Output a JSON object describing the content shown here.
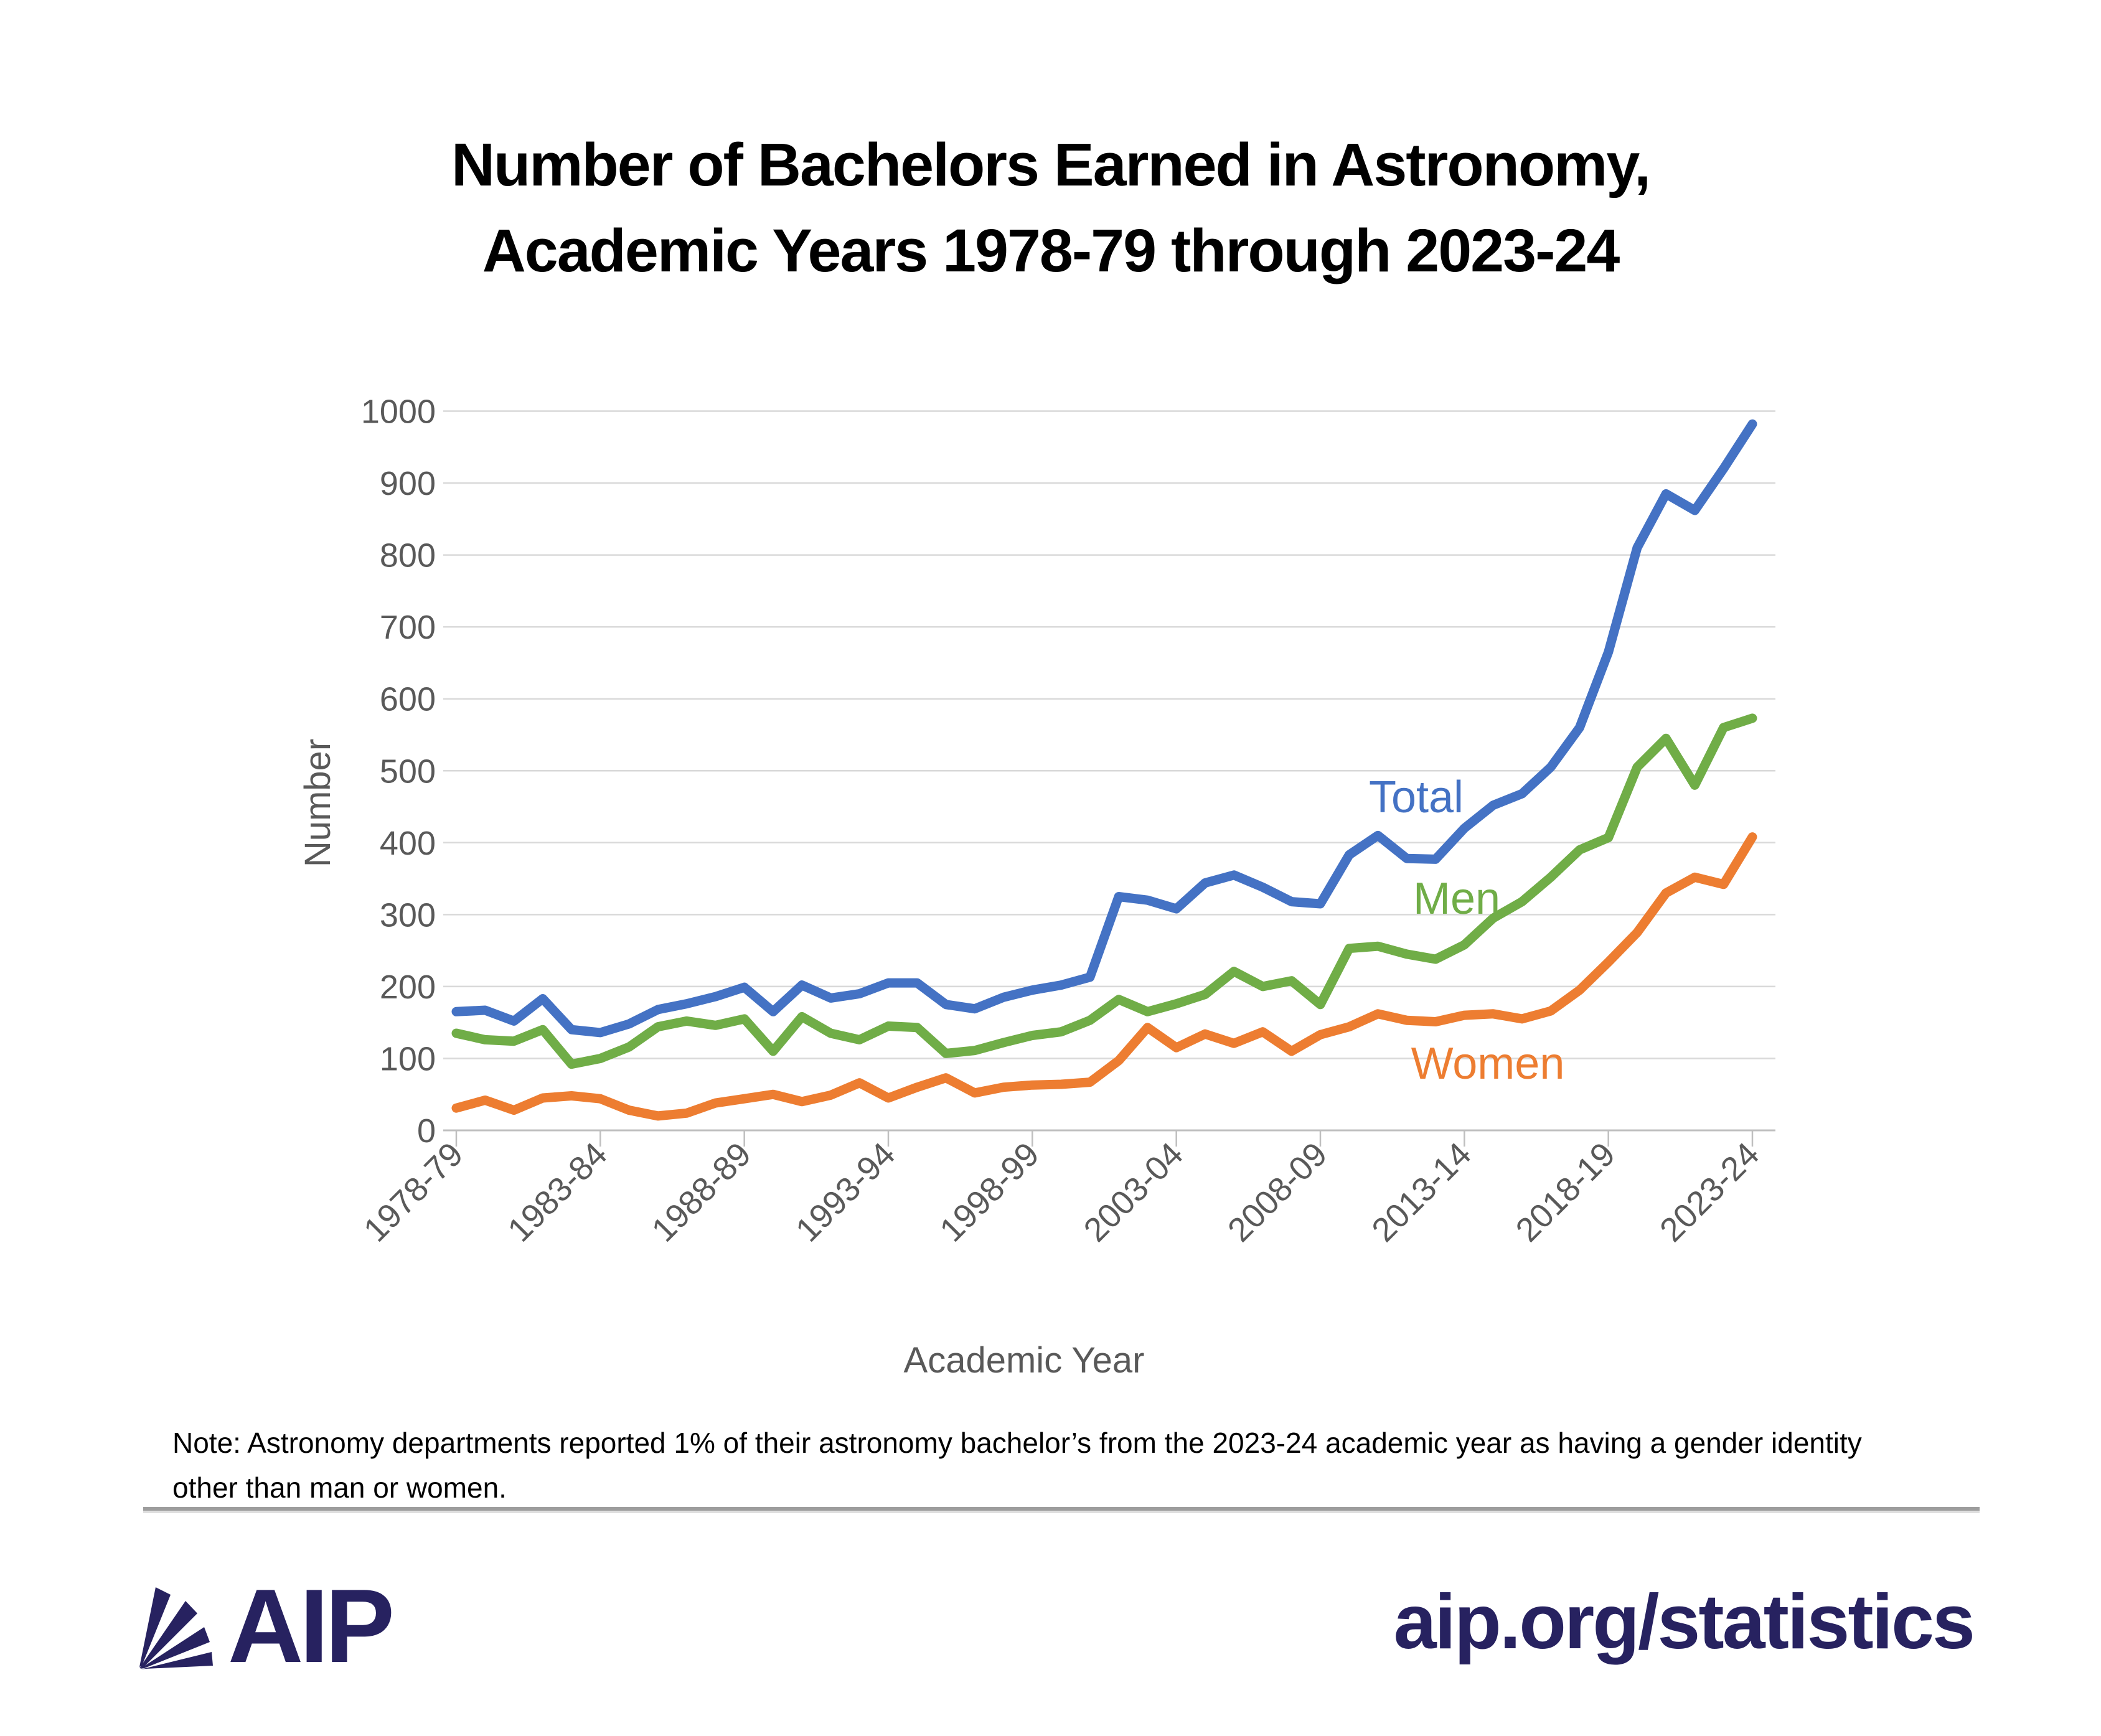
{
  "title": {
    "line1": "Number of Bachelors Earned in Astronomy,",
    "line2": "Academic Years 1978-79 through 2023-24"
  },
  "chart_data": {
    "type": "line",
    "title": "Number of Bachelors Earned in Astronomy, Academic Years 1978-79 through 2023-24",
    "xlabel": "Academic Year",
    "ylabel": "Number",
    "ylim": [
      0,
      1000
    ],
    "y_ticks": [
      0,
      100,
      200,
      300,
      400,
      500,
      600,
      700,
      800,
      900,
      1000
    ],
    "grid": true,
    "legend_position": "inline-right",
    "x_tick_labels": [
      "1978-79",
      "1983-84",
      "1988-89",
      "1993-94",
      "1998-99",
      "2003-04",
      "2008-09",
      "2013-14",
      "2018-19",
      "2023-24"
    ],
    "categories": [
      "1978-79",
      "1979-80",
      "1980-81",
      "1981-82",
      "1982-83",
      "1983-84",
      "1984-85",
      "1985-86",
      "1986-87",
      "1987-88",
      "1988-89",
      "1989-90",
      "1990-91",
      "1991-92",
      "1992-93",
      "1993-94",
      "1994-95",
      "1995-96",
      "1996-97",
      "1997-98",
      "1998-99",
      "1999-00",
      "2000-01",
      "2001-02",
      "2002-03",
      "2003-04",
      "2004-05",
      "2005-06",
      "2006-07",
      "2007-08",
      "2008-09",
      "2009-10",
      "2010-11",
      "2011-12",
      "2012-13",
      "2013-14",
      "2014-15",
      "2015-16",
      "2016-17",
      "2017-18",
      "2018-19",
      "2019-20",
      "2020-21",
      "2021-22",
      "2022-23",
      "2023-24"
    ],
    "series": [
      {
        "name": "Total",
        "color": "#4472C4",
        "values": [
          165,
          167,
          152,
          183,
          140,
          136,
          148,
          168,
          176,
          186,
          199,
          165,
          202,
          184,
          190,
          205,
          205,
          175,
          169,
          185,
          195,
          202,
          213,
          325,
          320,
          308,
          344,
          355,
          338,
          318,
          315,
          383,
          410,
          378,
          377,
          420,
          452,
          468,
          505,
          560,
          665,
          810,
          885,
          862,
          920,
          982
        ]
      },
      {
        "name": "Men",
        "color": "#70AD47",
        "values": [
          135,
          126,
          124,
          140,
          92,
          100,
          116,
          144,
          152,
          146,
          155,
          110,
          158,
          135,
          126,
          145,
          143,
          107,
          111,
          122,
          132,
          137,
          153,
          182,
          165,
          176,
          189,
          221,
          200,
          208,
          175,
          253,
          256,
          245,
          238,
          258,
          295,
          318,
          352,
          390,
          407,
          505,
          545,
          480,
          560,
          573
        ]
      },
      {
        "name": "Women",
        "color": "#ED7D31",
        "values": [
          31,
          42,
          28,
          45,
          48,
          44,
          28,
          20,
          24,
          38,
          44,
          50,
          40,
          49,
          66,
          45,
          60,
          73,
          52,
          60,
          63,
          64,
          67,
          97,
          143,
          115,
          134,
          121,
          137,
          110,
          133,
          144,
          162,
          153,
          151,
          160,
          162,
          155,
          166,
          195,
          234,
          275,
          330,
          352,
          342,
          408
        ]
      }
    ]
  },
  "note": {
    "line1": "Note: Astronomy departments reported 1% of their astronomy bachelor’s from the 2023-24 academic year as having a gender identity",
    "line2": "other than man or women."
  },
  "footer": {
    "logo_text": "AIP",
    "link": "aip.org/statistics"
  },
  "colors": {
    "total": "#4472C4",
    "men": "#70AD47",
    "women": "#ED7D31",
    "gridline": "#D9D9D9",
    "axis": "#BFBFBF",
    "axis_text": "#595959",
    "brand_navy": "#272260"
  }
}
